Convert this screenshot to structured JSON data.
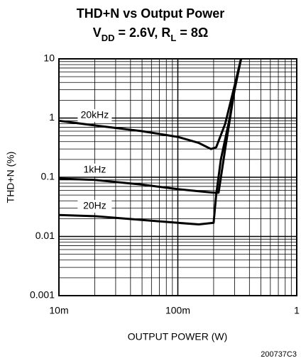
{
  "chart_data": {
    "type": "line",
    "title": "THD+N vs Output Power",
    "subtitle_parts": [
      {
        "text": "V"
      },
      {
        "text": "DD",
        "sub": true
      },
      {
        "text": " = 2.6V, R"
      },
      {
        "text": "L",
        "sub": true
      },
      {
        "text": " = 8Ω"
      }
    ],
    "xlabel": "OUTPUT POWER (W)",
    "ylabel": "THD+N (%)",
    "figure_id": "200737C3",
    "xscale": "log",
    "yscale": "log",
    "grid": true,
    "xlim": [
      0.01,
      1
    ],
    "ylim": [
      0.001,
      10
    ],
    "xticks": [
      {
        "value": 0.01,
        "label": "10m"
      },
      {
        "value": 0.1,
        "label": "100m"
      },
      1
    ],
    "yticks": [
      0.001,
      0.01,
      0.1,
      1,
      10
    ],
    "series": [
      {
        "name": "20kHz",
        "color": "#000000",
        "x": [
          0.01,
          0.02,
          0.05,
          0.1,
          0.15,
          0.19,
          0.21,
          0.25,
          0.3,
          0.34
        ],
        "values": [
          0.9,
          0.75,
          0.6,
          0.48,
          0.38,
          0.3,
          0.32,
          0.8,
          3.5,
          10
        ]
      },
      {
        "name": "1kHz",
        "color": "#000000",
        "x": [
          0.01,
          0.02,
          0.05,
          0.1,
          0.15,
          0.2,
          0.22,
          0.25,
          0.3,
          0.34
        ],
        "values": [
          0.095,
          0.09,
          0.075,
          0.063,
          0.058,
          0.055,
          0.055,
          0.3,
          3,
          10
        ]
      },
      {
        "name": "20Hz",
        "color": "#000000",
        "x": [
          0.01,
          0.02,
          0.05,
          0.1,
          0.15,
          0.2,
          0.21,
          0.23,
          0.27,
          0.3,
          0.34
        ],
        "values": [
          0.023,
          0.022,
          0.019,
          0.017,
          0.016,
          0.017,
          0.05,
          0.2,
          0.9,
          3,
          10
        ]
      }
    ]
  }
}
